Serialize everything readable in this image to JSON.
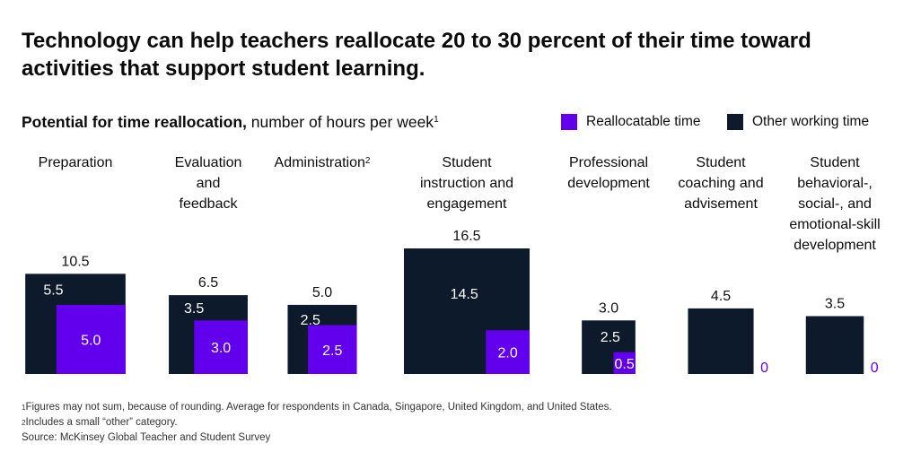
{
  "title": "Technology can help teachers reallocate 20 to 30 percent of their time toward activities that support student learning.",
  "subtitle": {
    "bold": "Potential for time reallocation,",
    "rest": " number of hours per week",
    "footnote_mark": "1"
  },
  "legend": [
    {
      "label": "Reallocatable time",
      "color": "#6200ee"
    },
    {
      "label": "Other working time",
      "color": "#0c1a2b"
    }
  ],
  "chart_data": {
    "type": "nested-square",
    "units": "hours per week",
    "categories": [
      {
        "name": "Preparation",
        "lines": [
          "Preparation"
        ],
        "sup": "",
        "total": 10.5,
        "other": 5.5,
        "reallocatable": 5.0,
        "total_label": "10.5",
        "other_label": "5.5",
        "realloc_label": "5.0"
      },
      {
        "name": "Evaluation and feedback",
        "lines": [
          "Evaluation",
          "and",
          "feedback"
        ],
        "sup": "",
        "total": 6.5,
        "other": 3.5,
        "reallocatable": 3.0,
        "total_label": "6.5",
        "other_label": "3.5",
        "realloc_label": "3.0"
      },
      {
        "name": "Administration",
        "lines": [
          "Administration"
        ],
        "sup": "2",
        "total": 5.0,
        "other": 2.5,
        "reallocatable": 2.5,
        "total_label": "5.0",
        "other_label": "2.5",
        "realloc_label": "2.5"
      },
      {
        "name": "Student instruction and engagement",
        "lines": [
          "Student",
          "instruction and",
          "engagement"
        ],
        "sup": "",
        "total": 16.5,
        "other": 14.5,
        "reallocatable": 2.0,
        "total_label": "16.5",
        "other_label": "14.5",
        "realloc_label": "2.0"
      },
      {
        "name": "Professional development",
        "lines": [
          "Professional",
          "development"
        ],
        "sup": "",
        "total": 3.0,
        "other": 2.5,
        "reallocatable": 0.5,
        "total_label": "3.0",
        "other_label": "2.5",
        "realloc_label": "0.5"
      },
      {
        "name": "Student coaching and advisement",
        "lines": [
          "Student",
          "coaching and",
          "advisement"
        ],
        "sup": "",
        "total": 4.5,
        "other": 4.5,
        "reallocatable": 0,
        "total_label": "4.5",
        "other_label": "",
        "realloc_label": "0"
      },
      {
        "name": "Student behavioral-, social-, and emotional-skill development",
        "lines": [
          "Student",
          "behavioral-,",
          "social-, and",
          "emotional-skill",
          "development"
        ],
        "sup": "",
        "total": 3.5,
        "other": 3.5,
        "reallocatable": 0,
        "total_label": "3.5",
        "other_label": "",
        "realloc_label": "0"
      }
    ]
  },
  "footnotes": [
    {
      "mark": "1",
      "text": "Figures may not sum, because of rounding. Average for respondents in Canada, Singapore, United Kingdom, and United States."
    },
    {
      "mark": "2",
      "text": "Includes a small “other” category."
    },
    {
      "mark": "",
      "text": "Source: McKinsey Global Teacher and Student Survey"
    }
  ]
}
